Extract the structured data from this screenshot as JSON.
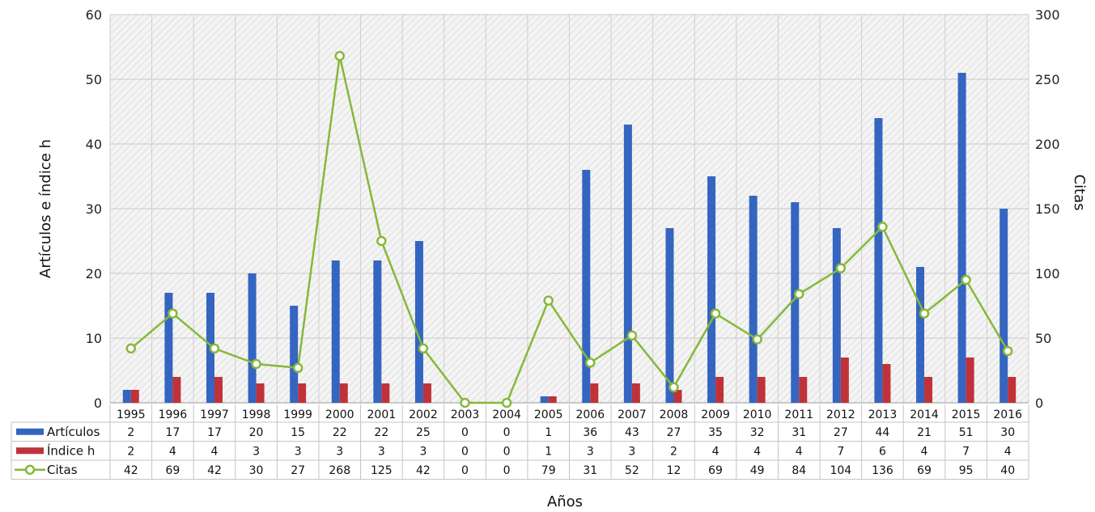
{
  "chart_data": {
    "type": "bar",
    "xlabel": "Años",
    "ylabel": "Artículos e índice h",
    "y2label": "Citas",
    "ylim": [
      0,
      60
    ],
    "y2lim": [
      0,
      300
    ],
    "yticks": [
      0,
      10,
      20,
      30,
      40,
      50,
      60
    ],
    "y2ticks": [
      0,
      50,
      100,
      150,
      200,
      250,
      300
    ],
    "grid": true,
    "legend": "data-table-left",
    "categories": [
      "1995",
      "1996",
      "1997",
      "1998",
      "1999",
      "2000",
      "2001",
      "2002",
      "2003",
      "2004",
      "2005",
      "2006",
      "2007",
      "2008",
      "2009",
      "2010",
      "2011",
      "2012",
      "2013",
      "2014",
      "2015",
      "2016"
    ],
    "series": [
      {
        "name": "Artículos",
        "kind": "bar",
        "axis": "left",
        "color": "#3465c0",
        "values": [
          2,
          17,
          17,
          20,
          15,
          22,
          22,
          25,
          0,
          0,
          1,
          36,
          43,
          27,
          35,
          32,
          31,
          27,
          44,
          21,
          51,
          30
        ]
      },
      {
        "name": "Índice h",
        "kind": "bar",
        "axis": "left",
        "color": "#c0323a",
        "values": [
          2,
          4,
          4,
          3,
          3,
          3,
          3,
          3,
          0,
          0,
          1,
          3,
          3,
          2,
          4,
          4,
          4,
          7,
          6,
          4,
          7,
          4
        ]
      },
      {
        "name": "Citas",
        "kind": "line",
        "axis": "right",
        "color": "#86b83a",
        "values": [
          42,
          69,
          42,
          30,
          27,
          268,
          125,
          42,
          0,
          0,
          79,
          31,
          52,
          12,
          69,
          49,
          84,
          104,
          136,
          69,
          95,
          40
        ]
      }
    ]
  }
}
